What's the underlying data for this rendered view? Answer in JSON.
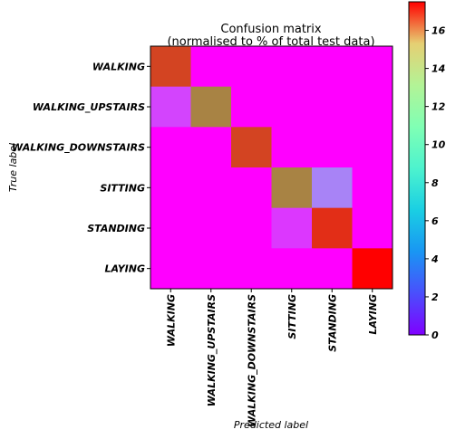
{
  "chart_data": {
    "type": "heatmap",
    "title": "Confusion matrix",
    "subtitle": "(normalised to % of total test data)",
    "xlabel": "Predicted label",
    "ylabel": "True label",
    "x_categories": [
      "WALKING",
      "WALKING_UPSTAIRS",
      "WALKING_DOWNSTAIRS",
      "SITTING",
      "STANDING",
      "LAYING"
    ],
    "y_categories": [
      "WALKING",
      "WALKING_UPSTAIRS",
      "WALKING_DOWNSTAIRS",
      "SITTING",
      "STANDING",
      "LAYING"
    ],
    "values": [
      [
        16.0,
        0.0,
        0.0,
        0.0,
        0.0,
        0.0
      ],
      [
        1.5,
        14.5,
        0.0,
        0.0,
        0.0,
        0.0
      ],
      [
        0.0,
        0.0,
        16.0,
        0.0,
        0.0,
        0.0
      ],
      [
        0.0,
        0.0,
        0.0,
        14.5,
        3.0,
        0.0
      ],
      [
        0.0,
        0.0,
        0.0,
        1.2,
        16.5,
        0.0
      ],
      [
        0.0,
        0.0,
        0.0,
        0.0,
        0.0,
        17.5
      ]
    ],
    "colormap": "rainbow",
    "colorbar": {
      "range": [
        0,
        17.5
      ],
      "ticks": [
        0,
        2,
        4,
        6,
        8,
        10,
        12,
        14,
        16
      ]
    }
  }
}
